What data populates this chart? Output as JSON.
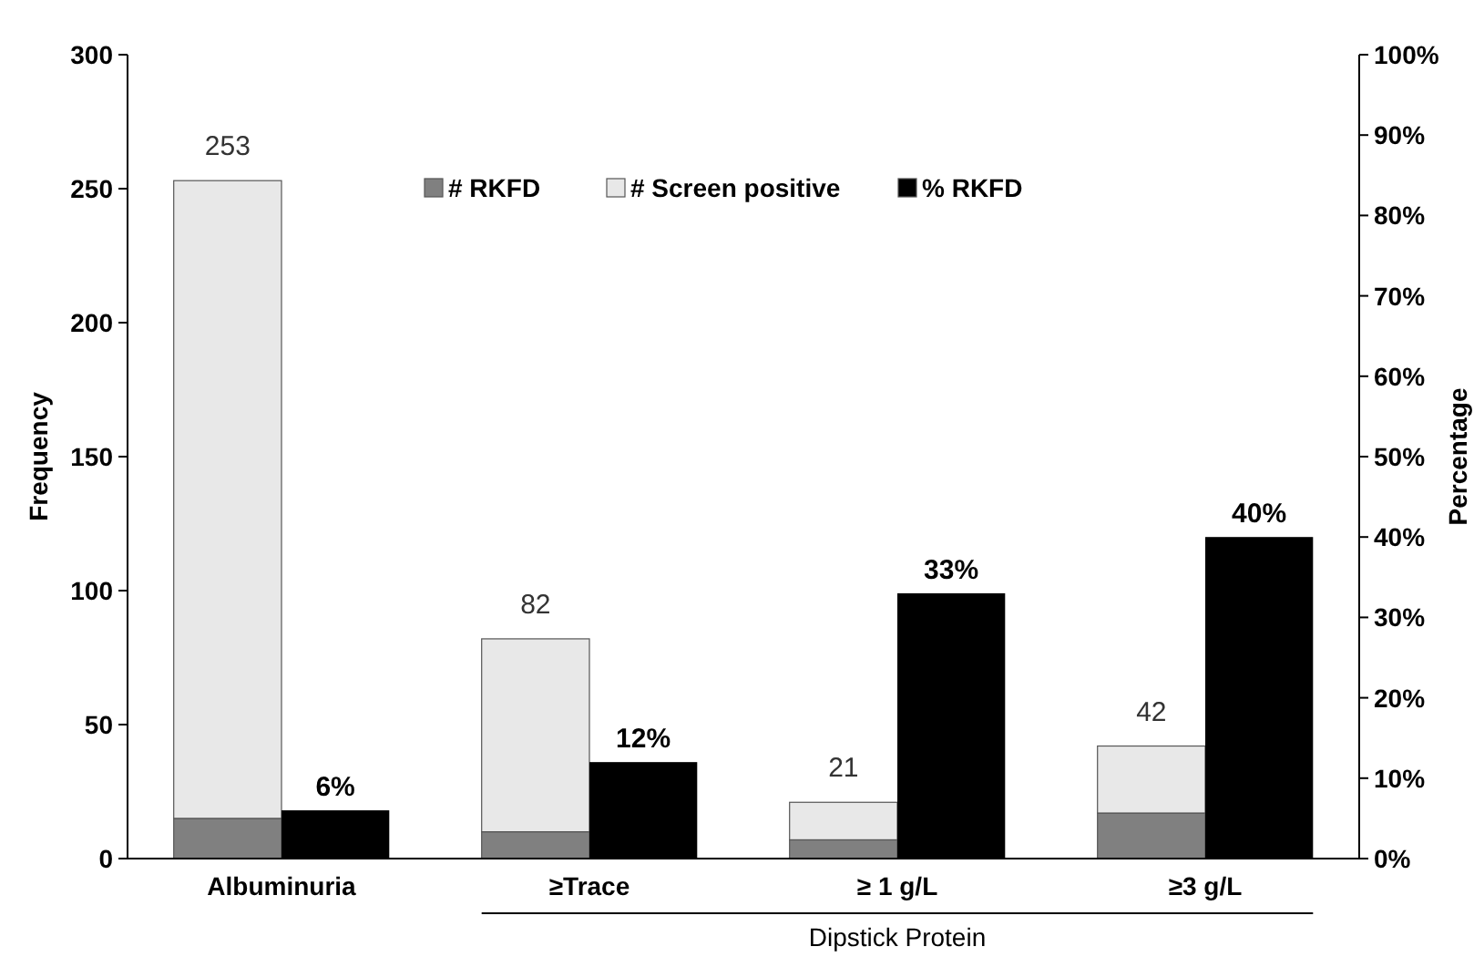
{
  "chart_data": {
    "type": "bar",
    "stacked": true,
    "categories": [
      "Albuminuria",
      "≥Trace",
      "≥ 1 g/L",
      "≥3 g/L"
    ],
    "ylabel": "Frequency",
    "y2label": "Percentage",
    "ylim": [
      0,
      300
    ],
    "yticks": [
      0,
      50,
      100,
      150,
      200,
      250,
      300
    ],
    "y2lim": [
      0,
      100
    ],
    "y2ticks": [
      {
        "value": 0,
        "label": "0%"
      },
      {
        "value": 10,
        "label": "10%"
      },
      {
        "value": 20,
        "label": "20%"
      },
      {
        "value": 30,
        "label": "30%"
      },
      {
        "value": 40,
        "label": "40%"
      },
      {
        "value": 50,
        "label": "50%"
      },
      {
        "value": 60,
        "label": "60%"
      },
      {
        "value": 70,
        "label": "70%"
      },
      {
        "value": 80,
        "label": "80%"
      },
      {
        "value": 90,
        "label": "90%"
      },
      {
        "value": 100,
        "label": "100%"
      }
    ],
    "series": [
      {
        "name": "# RKFD",
        "color": "#808080",
        "values": [
          15,
          10,
          7,
          17
        ]
      },
      {
        "name": "# Screen positive",
        "color": "#e8e8e8",
        "values": [
          238,
          72,
          14,
          25
        ]
      },
      {
        "name": "% RKFD",
        "color": "#000000",
        "axis": "y2",
        "values": [
          6,
          12,
          33,
          40
        ],
        "value_labels": [
          "6%",
          "12%",
          "33%",
          "40%"
        ]
      }
    ],
    "totals": [
      "253",
      "82",
      "21",
      "42"
    ],
    "annotations": [
      "Dipstick Protein"
    ],
    "legend": "top",
    "grid": false
  }
}
